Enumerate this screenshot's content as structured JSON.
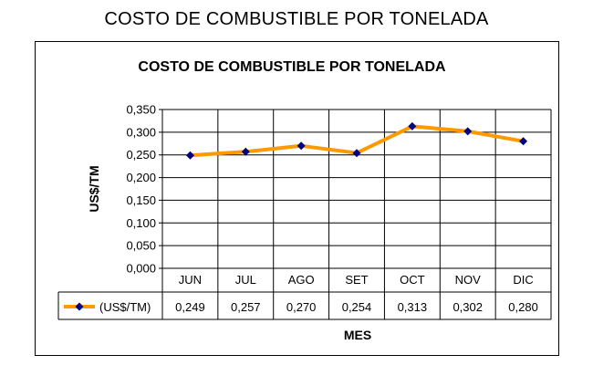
{
  "page_title": "COSTO DE COMBUSTIBLE POR TONELADA",
  "chart_data": {
    "type": "line",
    "title": "COSTO DE COMBUSTIBLE POR TONELADA",
    "xlabel": "MES",
    "ylabel": "US$/TM",
    "categories": [
      "JUN",
      "JUL",
      "AGO",
      "SET",
      "OCT",
      "NOV",
      "DIC"
    ],
    "y_ticks": [
      "0,000",
      "0,050",
      "0,100",
      "0,150",
      "0,200",
      "0,250",
      "0,300",
      "0,350"
    ],
    "ylim": [
      0,
      0.35
    ],
    "grid": true,
    "legend": "data-table",
    "series": [
      {
        "name": "(US$/TM)",
        "values": [
          0.249,
          0.257,
          0.27,
          0.254,
          0.313,
          0.302,
          0.28
        ],
        "labels": [
          "0,249",
          "0,257",
          "0,270",
          "0,254",
          "0,313",
          "0,302",
          "0,280"
        ],
        "line_color": "#FF9900",
        "marker_color": "#000080"
      }
    ]
  }
}
